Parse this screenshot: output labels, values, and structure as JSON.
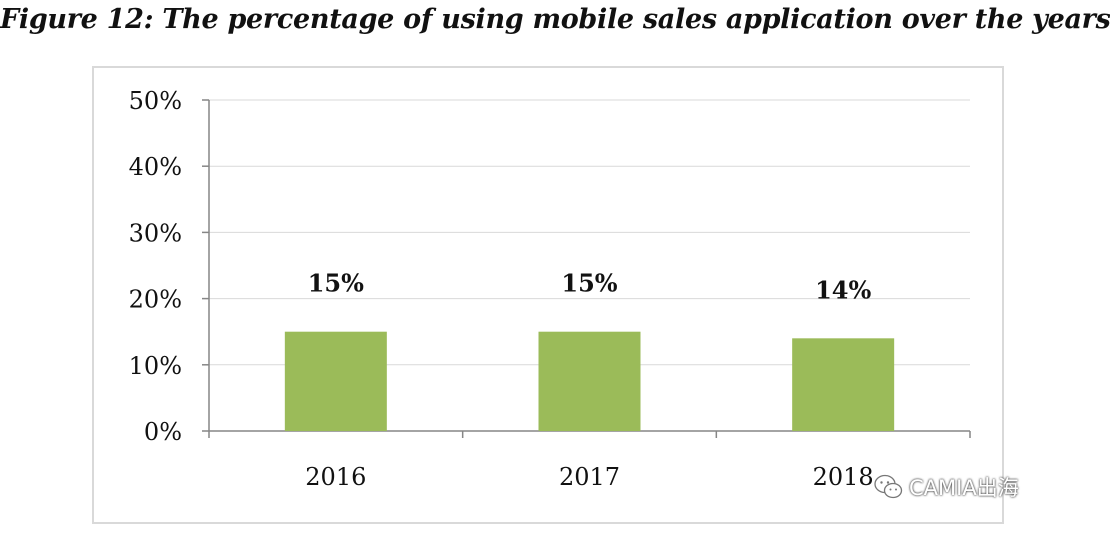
{
  "title": "Figure 12: The percentage of using mobile sales application over the years",
  "chart_data": {
    "type": "bar",
    "categories": [
      "2016",
      "2017",
      "2018"
    ],
    "values": [
      15,
      15,
      14
    ],
    "data_labels": [
      "15%",
      "15%",
      "14%"
    ],
    "ylim": [
      0,
      50
    ],
    "yticks": [
      "0%",
      "10%",
      "20%",
      "30%",
      "40%",
      "50%"
    ],
    "bar_color": "#9bbb59",
    "grid": true,
    "legend": "none"
  },
  "watermark": {
    "text": "CAMIA出海",
    "icon": "wechat-icon"
  }
}
